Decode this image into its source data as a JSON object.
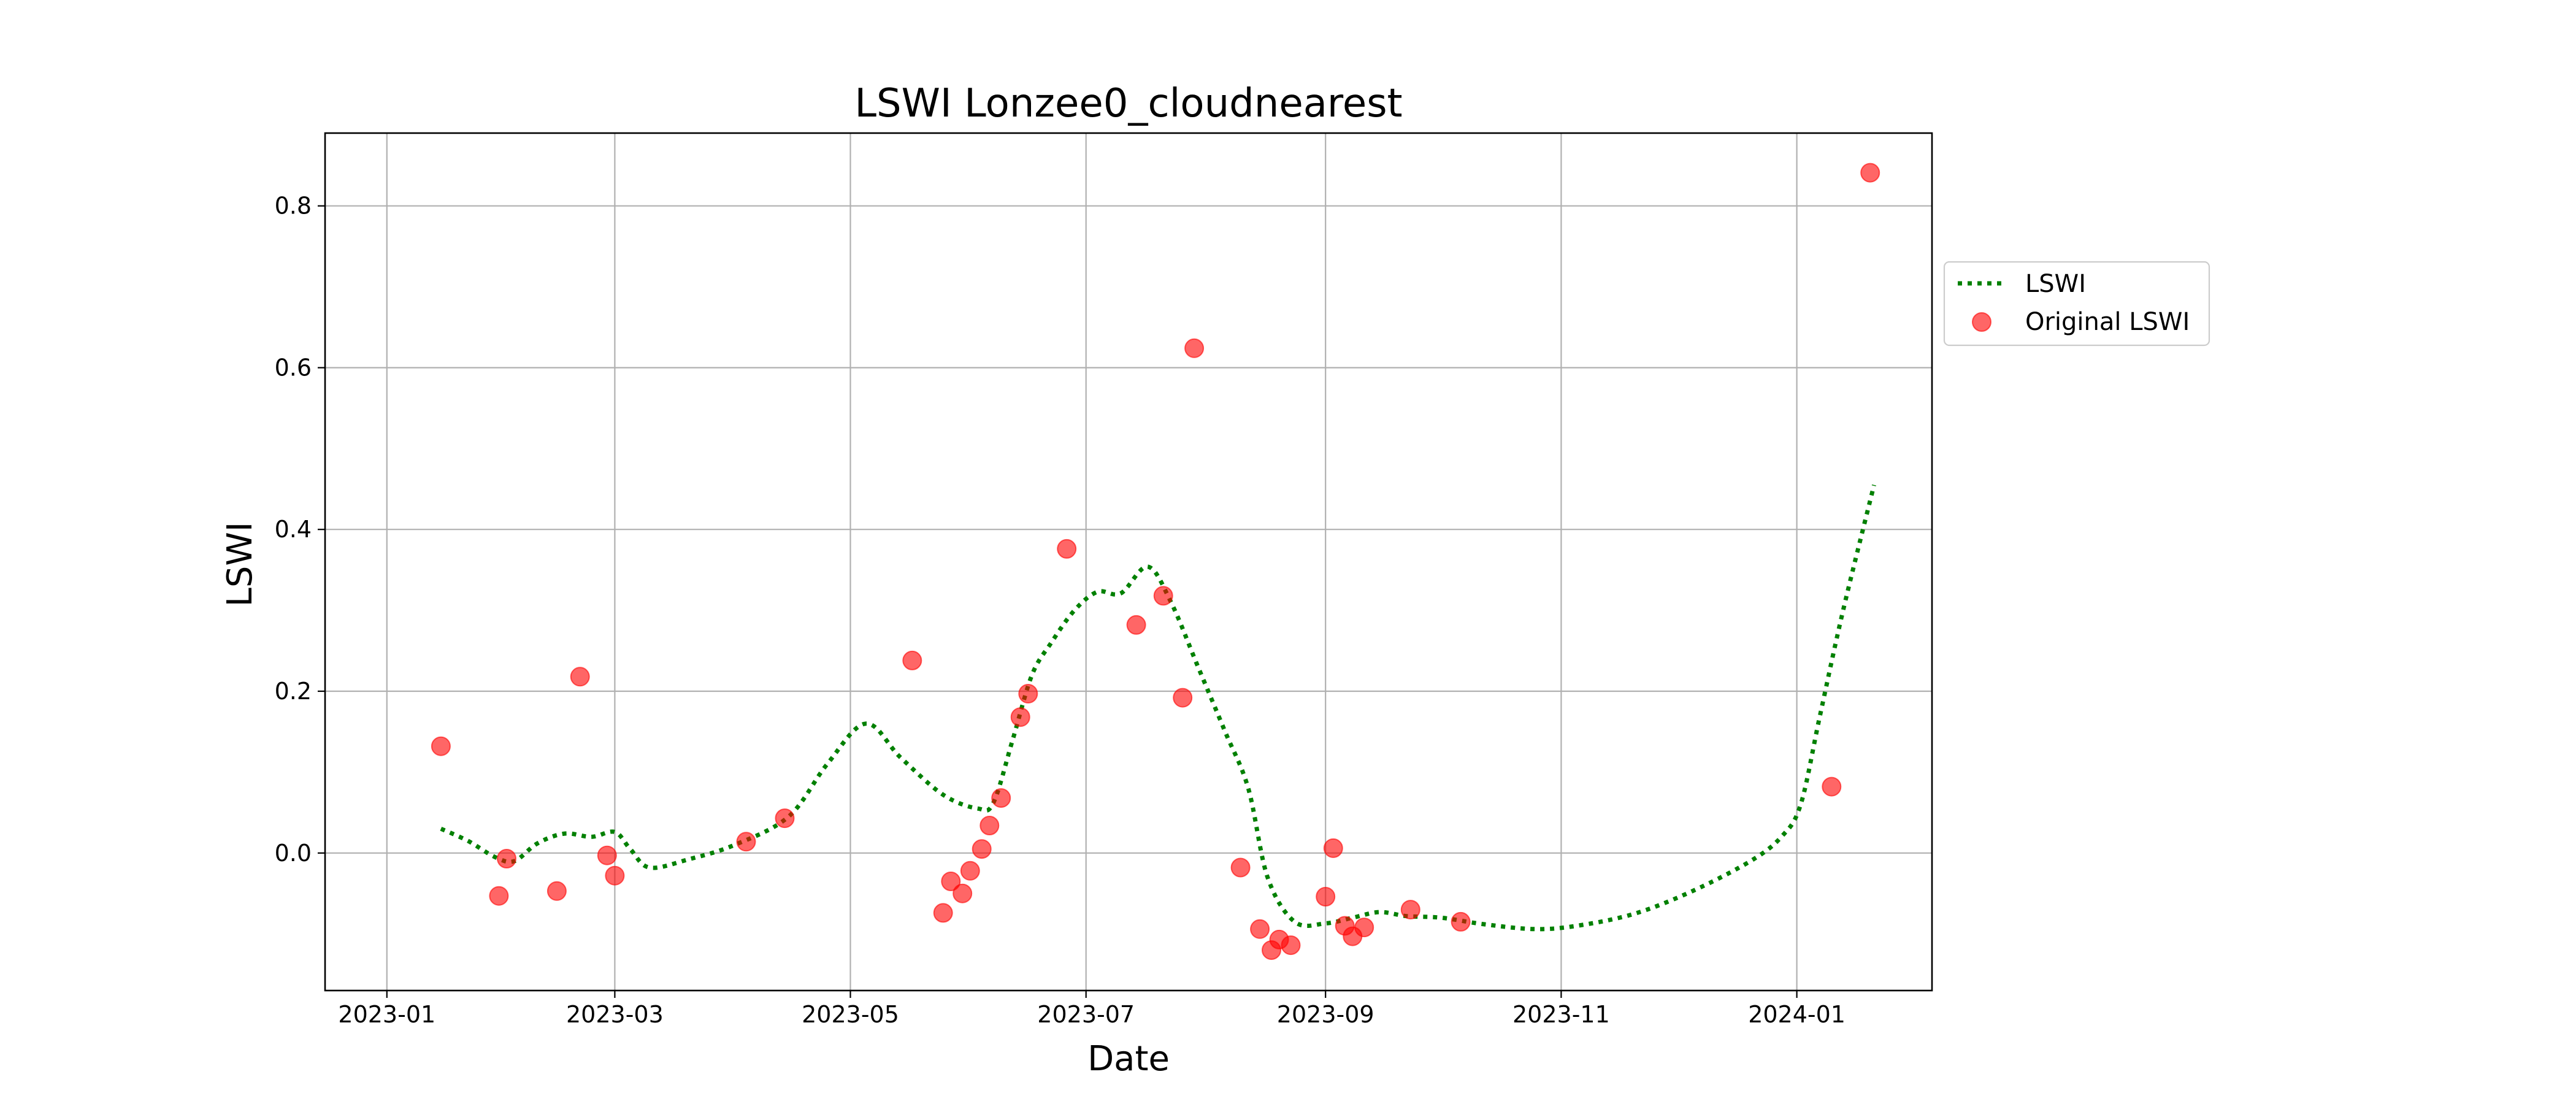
{
  "chart_data": {
    "type": "line",
    "title": "LSWI Lonzee0_cloudnearest",
    "xlabel": "Date",
    "ylabel": "LSWI",
    "x_type": "date",
    "xlim": [
      "2022-12-16",
      "2024-02-05"
    ],
    "ylim": [
      -0.17,
      0.89
    ],
    "x_ticks": [
      {
        "value": "2023-01-01",
        "label": "2023-01"
      },
      {
        "value": "2023-03-01",
        "label": "2023-03"
      },
      {
        "value": "2023-05-01",
        "label": "2023-05"
      },
      {
        "value": "2023-07-01",
        "label": "2023-07"
      },
      {
        "value": "2023-09-01",
        "label": "2023-09"
      },
      {
        "value": "2023-11-01",
        "label": "2023-11"
      },
      {
        "value": "2024-01-01",
        "label": "2024-01"
      }
    ],
    "y_ticks": [
      {
        "value": 0.0,
        "label": "0.0"
      },
      {
        "value": 0.2,
        "label": "0.2"
      },
      {
        "value": 0.4,
        "label": "0.4"
      },
      {
        "value": 0.6,
        "label": "0.6"
      },
      {
        "value": 0.8,
        "label": "0.8"
      }
    ],
    "grid": true,
    "legend_position": "outside-right-upper",
    "series": [
      {
        "name": "LSWI",
        "style": "dotted-line",
        "color": "#008000",
        "points": [
          {
            "x": "2023-01-15",
            "y": 0.03
          },
          {
            "x": "2023-01-22",
            "y": 0.015
          },
          {
            "x": "2023-01-29",
            "y": -0.005
          },
          {
            "x": "2023-02-03",
            "y": -0.01
          },
          {
            "x": "2023-02-09",
            "y": 0.012
          },
          {
            "x": "2023-02-16",
            "y": 0.024
          },
          {
            "x": "2023-02-23",
            "y": 0.02
          },
          {
            "x": "2023-03-01",
            "y": 0.026
          },
          {
            "x": "2023-03-05",
            "y": 0.005
          },
          {
            "x": "2023-03-10",
            "y": -0.018
          },
          {
            "x": "2023-03-20",
            "y": -0.008
          },
          {
            "x": "2023-04-01",
            "y": 0.01
          },
          {
            "x": "2023-04-15",
            "y": 0.045
          },
          {
            "x": "2023-04-25",
            "y": 0.11
          },
          {
            "x": "2023-05-05",
            "y": 0.16
          },
          {
            "x": "2023-05-14",
            "y": 0.118
          },
          {
            "x": "2023-05-25",
            "y": 0.072
          },
          {
            "x": "2023-06-03",
            "y": 0.055
          },
          {
            "x": "2023-06-07",
            "y": 0.062
          },
          {
            "x": "2023-06-12",
            "y": 0.14
          },
          {
            "x": "2023-06-17",
            "y": 0.22
          },
          {
            "x": "2023-06-22",
            "y": 0.26
          },
          {
            "x": "2023-06-28",
            "y": 0.3
          },
          {
            "x": "2023-07-04",
            "y": 0.323
          },
          {
            "x": "2023-07-10",
            "y": 0.321
          },
          {
            "x": "2023-07-17",
            "y": 0.354
          },
          {
            "x": "2023-07-23",
            "y": 0.31
          },
          {
            "x": "2023-07-30",
            "y": 0.23
          },
          {
            "x": "2023-08-06",
            "y": 0.15
          },
          {
            "x": "2023-08-12",
            "y": 0.08
          },
          {
            "x": "2023-08-17",
            "y": -0.03
          },
          {
            "x": "2023-08-24",
            "y": -0.085
          },
          {
            "x": "2023-09-01",
            "y": -0.087
          },
          {
            "x": "2023-09-08",
            "y": -0.08
          },
          {
            "x": "2023-09-15",
            "y": -0.073
          },
          {
            "x": "2023-09-22",
            "y": -0.078
          },
          {
            "x": "2023-10-01",
            "y": -0.08
          },
          {
            "x": "2023-10-12",
            "y": -0.088
          },
          {
            "x": "2023-10-25",
            "y": -0.094
          },
          {
            "x": "2023-11-05",
            "y": -0.09
          },
          {
            "x": "2023-11-20",
            "y": -0.075
          },
          {
            "x": "2023-12-05",
            "y": -0.047
          },
          {
            "x": "2023-12-20",
            "y": -0.01
          },
          {
            "x": "2023-12-28",
            "y": 0.02
          },
          {
            "x": "2024-01-02",
            "y": 0.06
          },
          {
            "x": "2024-01-07",
            "y": 0.17
          },
          {
            "x": "2024-01-13",
            "y": 0.3
          },
          {
            "x": "2024-01-21",
            "y": 0.455
          }
        ]
      },
      {
        "name": "Original LSWI",
        "style": "scatter",
        "color": "#ff0000",
        "points": [
          {
            "x": "2023-01-15",
            "y": 0.132
          },
          {
            "x": "2023-01-30",
            "y": -0.053
          },
          {
            "x": "2023-02-01",
            "y": -0.007
          },
          {
            "x": "2023-02-14",
            "y": -0.047
          },
          {
            "x": "2023-02-20",
            "y": 0.218
          },
          {
            "x": "2023-02-27",
            "y": -0.003
          },
          {
            "x": "2023-03-01",
            "y": -0.028
          },
          {
            "x": "2023-04-04",
            "y": 0.014
          },
          {
            "x": "2023-04-14",
            "y": 0.043
          },
          {
            "x": "2023-05-17",
            "y": 0.238
          },
          {
            "x": "2023-05-25",
            "y": -0.074
          },
          {
            "x": "2023-05-27",
            "y": -0.035
          },
          {
            "x": "2023-05-30",
            "y": -0.05
          },
          {
            "x": "2023-06-01",
            "y": -0.022
          },
          {
            "x": "2023-06-04",
            "y": 0.005
          },
          {
            "x": "2023-06-06",
            "y": 0.034
          },
          {
            "x": "2023-06-09",
            "y": 0.068
          },
          {
            "x": "2023-06-14",
            "y": 0.168
          },
          {
            "x": "2023-06-16",
            "y": 0.197
          },
          {
            "x": "2023-06-26",
            "y": 0.376
          },
          {
            "x": "2023-07-14",
            "y": 0.282
          },
          {
            "x": "2023-07-21",
            "y": 0.318
          },
          {
            "x": "2023-07-26",
            "y": 0.192
          },
          {
            "x": "2023-07-29",
            "y": 0.624
          },
          {
            "x": "2023-08-10",
            "y": -0.018
          },
          {
            "x": "2023-08-15",
            "y": -0.094
          },
          {
            "x": "2023-08-18",
            "y": -0.12
          },
          {
            "x": "2023-08-20",
            "y": -0.107
          },
          {
            "x": "2023-08-23",
            "y": -0.114
          },
          {
            "x": "2023-09-01",
            "y": -0.054
          },
          {
            "x": "2023-09-03",
            "y": 0.006
          },
          {
            "x": "2023-09-06",
            "y": -0.09
          },
          {
            "x": "2023-09-08",
            "y": -0.103
          },
          {
            "x": "2023-09-11",
            "y": -0.092
          },
          {
            "x": "2023-09-23",
            "y": -0.07
          },
          {
            "x": "2023-10-06",
            "y": -0.085
          },
          {
            "x": "2024-01-10",
            "y": 0.082
          },
          {
            "x": "2024-01-20",
            "y": 0.841
          }
        ]
      }
    ]
  }
}
